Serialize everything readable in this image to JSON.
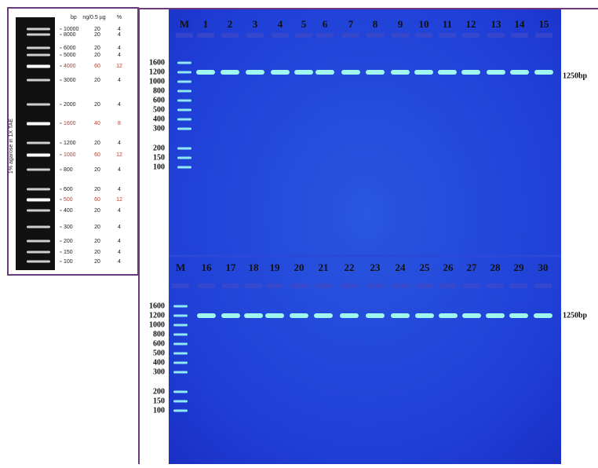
{
  "ladder": {
    "headers": [
      "bp",
      "ng/0.5 µg",
      "%"
    ],
    "side_label": "1% agarose in 1X TAE",
    "rows": [
      [
        "10000",
        "20",
        "4"
      ],
      [
        "8000",
        "20",
        "4"
      ],
      [
        "6000",
        "20",
        "4"
      ],
      [
        "5000",
        "20",
        "4"
      ],
      [
        "4000",
        "60",
        "12"
      ],
      [
        "3000",
        "20",
        "4"
      ],
      [
        "2000",
        "20",
        "4"
      ],
      [
        "1600",
        "40",
        "8"
      ],
      [
        "1200",
        "20",
        "4"
      ],
      [
        "1000",
        "60",
        "12"
      ],
      [
        "800",
        "20",
        "4"
      ],
      [
        "600",
        "20",
        "4"
      ],
      [
        "500",
        "60",
        "12"
      ],
      [
        "400",
        "20",
        "4"
      ],
      [
        "300",
        "20",
        "4"
      ],
      [
        "200",
        "20",
        "4"
      ],
      [
        "150",
        "20",
        "4"
      ],
      [
        "100",
        "20",
        "4"
      ]
    ]
  },
  "gel": {
    "top": {
      "lanes": [
        "M",
        "1",
        "2",
        "3",
        "4",
        "5",
        "6",
        "7",
        "8",
        "9",
        "10",
        "11",
        "12",
        "13",
        "14",
        "15"
      ],
      "markers": [
        "1600",
        "1200",
        "1000",
        "800",
        "600",
        "500",
        "400",
        "300",
        "200",
        "150",
        "100"
      ],
      "band_label": "1250bp"
    },
    "bottom": {
      "lanes": [
        "M",
        "16",
        "17",
        "18",
        "19",
        "20",
        "21",
        "22",
        "23",
        "24",
        "25",
        "26",
        "27",
        "28",
        "29",
        "30"
      ],
      "markers": [
        "1600",
        "1200",
        "1000",
        "800",
        "600",
        "500",
        "400",
        "300",
        "200",
        "150",
        "100"
      ],
      "band_label": "1250bp"
    }
  }
}
